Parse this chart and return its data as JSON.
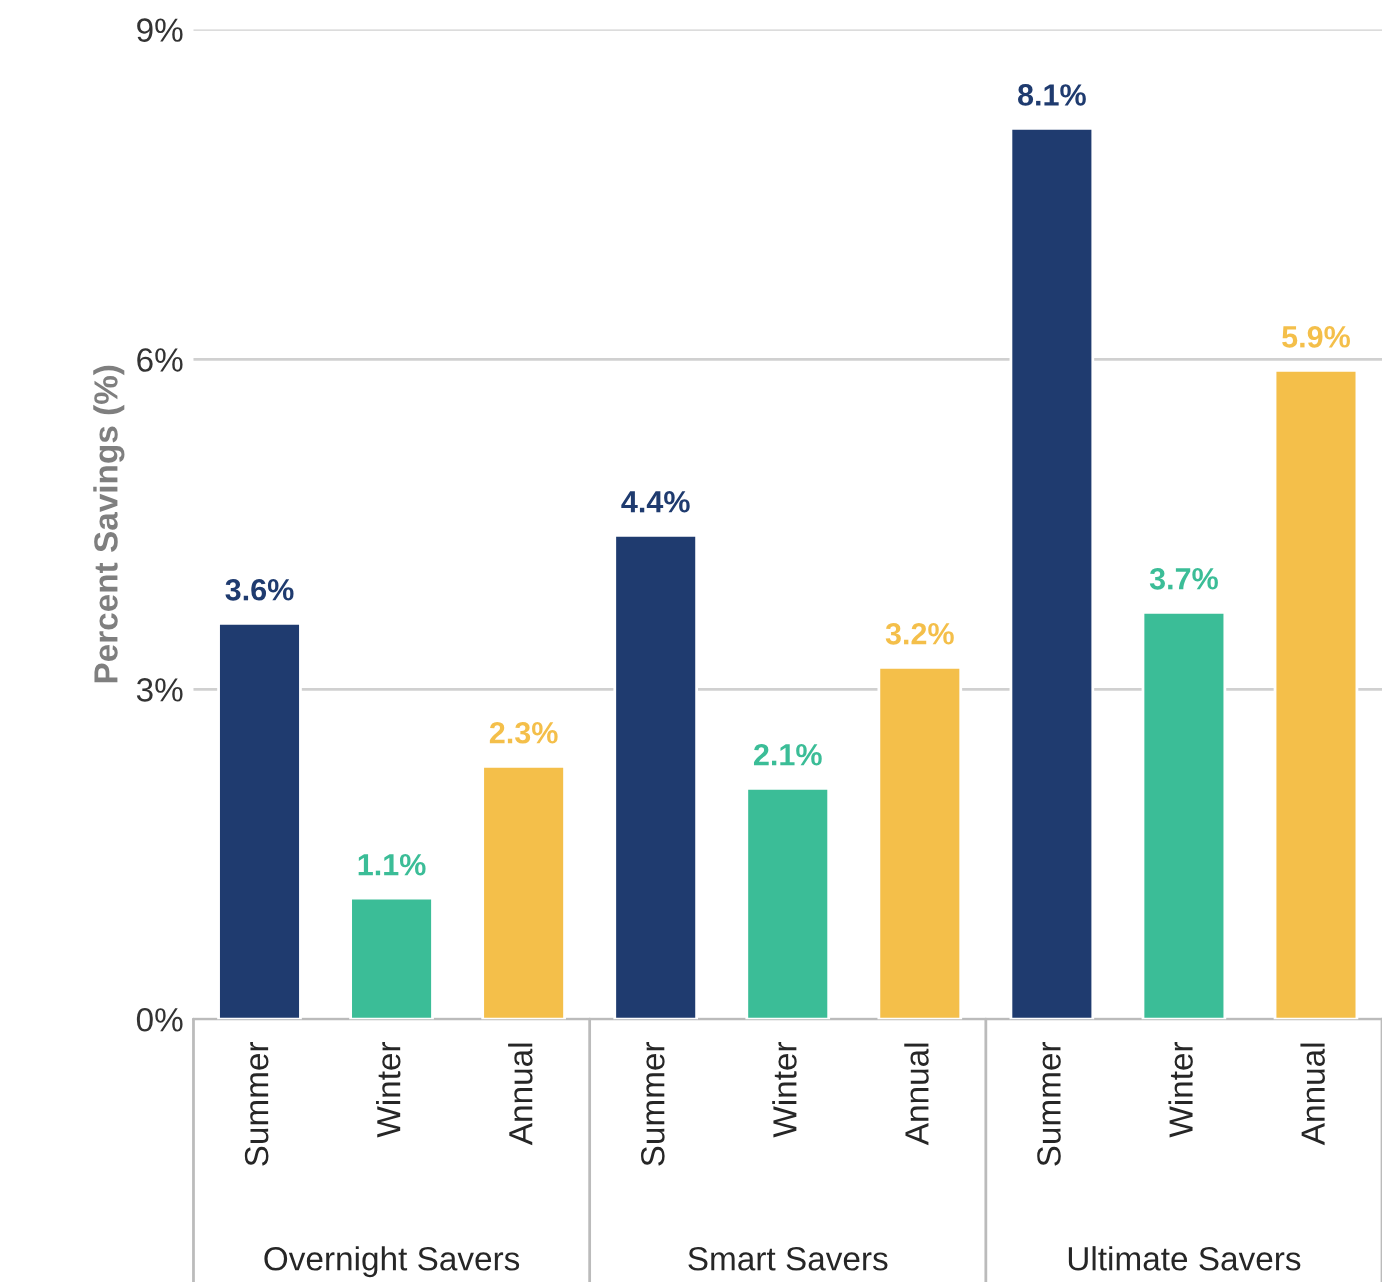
{
  "chart_data": {
    "type": "bar",
    "ylabel": "Percent Savings (%)",
    "categories": [
      "Summer",
      "Winter",
      "Annual",
      "Summer",
      "Winter",
      "Annual",
      "Summer",
      "Winter",
      "Annual"
    ],
    "values": [
      3.6,
      1.1,
      2.3,
      4.4,
      2.1,
      3.2,
      8.1,
      3.7,
      5.9
    ],
    "colors": [
      "#1f3b6f",
      "#3bbd97",
      "#f4bf4a",
      "#1f3b6f",
      "#3bbd97",
      "#f4bf4a",
      "#1f3b6f",
      "#3bbd97",
      "#f4bf4a"
    ],
    "value_labels": [
      "3.6%",
      "1.1%",
      "2.3%",
      "4.4%",
      "2.1%",
      "3.2%",
      "8.1%",
      "3.7%",
      "5.9%"
    ],
    "ylim": [
      0,
      9
    ],
    "yticks": [
      {
        "value": 0,
        "label": "0%"
      },
      {
        "value": 3,
        "label": "3%"
      },
      {
        "value": 6,
        "label": "6%"
      },
      {
        "value": 9,
        "label": "9%"
      }
    ],
    "grid": "y",
    "annotations": [
      "Overnight Savers",
      "Smart Savers",
      "Ultimate Savers"
    ]
  }
}
